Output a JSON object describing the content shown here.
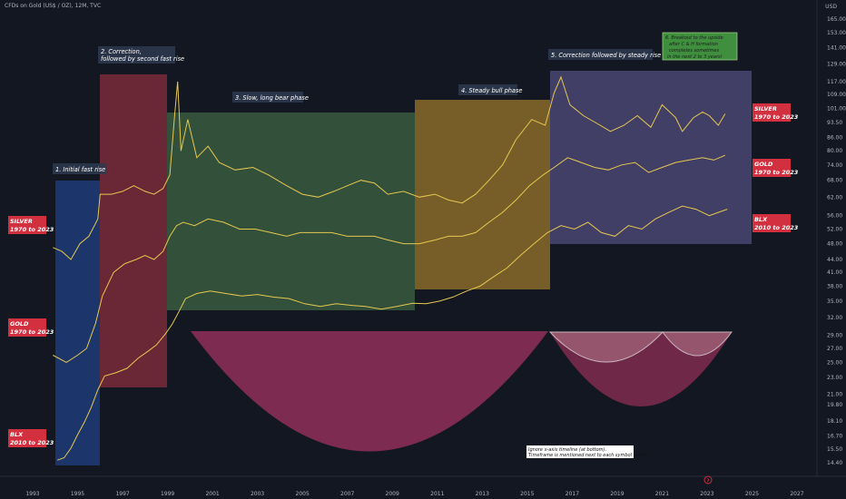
{
  "header": {
    "title": "CFDs on Gold (US$ / OZ), 12M, TVC",
    "currency": "USD"
  },
  "colors": {
    "background": "#131722",
    "series_line": "#e6c84f",
    "phase1": "#1f3b78",
    "phase2": "#7a2a3a",
    "phase3": "#3a5a40",
    "phase4": "#8a6b2a",
    "phase5": "#4a4672",
    "arc_big": "#8a2d55",
    "arc_small": "#7b3553",
    "side_label_bg": "#d22f3f",
    "note6_bg": "#3f8f3f"
  },
  "phases": [
    {
      "id": "phase-1",
      "label": "1. Initial fast rise"
    },
    {
      "id": "phase-2",
      "label_lines": [
        "2. Correction,",
        "followed by second fast rise"
      ]
    },
    {
      "id": "phase-3",
      "label": "3. Slow, long bear phase"
    },
    {
      "id": "phase-4",
      "label": "4. Steady bull phase"
    },
    {
      "id": "phase-5",
      "label": "5. Correction followed by steady rise"
    }
  ],
  "note6": {
    "lines": [
      "6. Breakout to the upside",
      "after C & H formation",
      "completes sometimes",
      "in the next 2 to 3 years!"
    ]
  },
  "note_bottom": {
    "lines": [
      "Ignore x-axis timeline (at bottom).",
      "Timeframe is mentioned next to each symbol above."
    ]
  },
  "side_labels": {
    "left": [
      {
        "name": "silver",
        "lines": [
          "SILVER",
          "1970 to 2023"
        ]
      },
      {
        "name": "gold",
        "lines": [
          "GOLD",
          "1970 to 2023"
        ]
      },
      {
        "name": "blx",
        "lines": [
          "BLX",
          "2010 to 2023"
        ]
      }
    ],
    "right": [
      {
        "name": "silver",
        "lines": [
          "SILVER",
          "1970 to 2023"
        ]
      },
      {
        "name": "gold",
        "lines": [
          "GOLD",
          "1970 to 2023"
        ]
      },
      {
        "name": "blx",
        "lines": [
          "BLX",
          "2010 to 2023"
        ]
      }
    ]
  },
  "chart_data": {
    "type": "line",
    "title": "CFDs on Gold (US$ / OZ), 12M, TVC",
    "y_scale": "log",
    "x_ticks": [
      "1993",
      "1995",
      "1997",
      "1999",
      "2001",
      "2003",
      "2005",
      "2007",
      "2009",
      "2011",
      "2013",
      "2015",
      "2017",
      "2019",
      "2021",
      "2023",
      "2025",
      "2027"
    ],
    "y_ticks": [
      "165.00",
      "153.00",
      "141.00",
      "129.00",
      "117.00",
      "109.00",
      "101.00",
      "93.50",
      "86.00",
      "80.00",
      "74.00",
      "68.00",
      "62.00",
      "56.00",
      "52.00",
      "48.00",
      "44.00",
      "41.00",
      "38.00",
      "35.00",
      "32.00",
      "29.00",
      "27.00",
      "25.00",
      "23.00",
      "21.00",
      "19.80",
      "18.10",
      "16.70",
      "15.50",
      "14.40"
    ],
    "series": [
      {
        "key": "silver",
        "points": [
          [
            1993.9,
            47
          ],
          [
            1994.3,
            46
          ],
          [
            1994.7,
            44
          ],
          [
            1995.1,
            48
          ],
          [
            1995.5,
            50
          ],
          [
            1995.9,
            55
          ],
          [
            1996.0,
            63
          ],
          [
            1996.5,
            63
          ],
          [
            1997.0,
            64
          ],
          [
            1997.5,
            66
          ],
          [
            1998.0,
            64
          ],
          [
            1998.4,
            63
          ],
          [
            1998.8,
            65
          ],
          [
            1999.1,
            70
          ],
          [
            1999.3,
            95
          ],
          [
            1999.45,
            117
          ],
          [
            1999.6,
            80
          ],
          [
            1999.9,
            95
          ],
          [
            2000.3,
            77
          ],
          [
            2000.8,
            82
          ],
          [
            2001.3,
            75
          ],
          [
            2002.0,
            72
          ],
          [
            2002.8,
            73
          ],
          [
            2003.5,
            70
          ],
          [
            2004.3,
            66
          ],
          [
            2005.0,
            63
          ],
          [
            2005.7,
            62
          ],
          [
            2006.4,
            64
          ],
          [
            2007.0,
            66
          ],
          [
            2007.6,
            68
          ],
          [
            2008.2,
            67
          ],
          [
            2008.8,
            63
          ],
          [
            2009.5,
            64
          ],
          [
            2010.2,
            62
          ],
          [
            2010.9,
            63
          ],
          [
            2011.5,
            61
          ],
          [
            2012.1,
            60
          ],
          [
            2012.7,
            63
          ],
          [
            2013.3,
            68
          ],
          [
            2013.9,
            74
          ],
          [
            2014.5,
            85
          ],
          [
            2015.2,
            95
          ],
          [
            2015.8,
            92
          ],
          [
            2016.2,
            110
          ],
          [
            2016.5,
            120
          ],
          [
            2016.9,
            103
          ],
          [
            2017.5,
            97
          ],
          [
            2018.1,
            93
          ],
          [
            2018.7,
            89
          ],
          [
            2019.3,
            92
          ],
          [
            2019.9,
            97
          ],
          [
            2020.5,
            91
          ],
          [
            2021.0,
            103
          ],
          [
            2021.6,
            96
          ],
          [
            2021.9,
            89
          ],
          [
            2022.4,
            96
          ],
          [
            2022.8,
            99
          ],
          [
            2023.1,
            97
          ],
          [
            2023.5,
            92
          ],
          [
            2023.8,
            98
          ]
        ]
      },
      {
        "key": "gold",
        "points": [
          [
            1993.9,
            26
          ],
          [
            1994.5,
            25
          ],
          [
            1995.0,
            26
          ],
          [
            1995.4,
            27
          ],
          [
            1995.8,
            31
          ],
          [
            1996.1,
            36
          ],
          [
            1996.6,
            41
          ],
          [
            1997.1,
            43
          ],
          [
            1997.6,
            44
          ],
          [
            1998.0,
            45
          ],
          [
            1998.4,
            44
          ],
          [
            1998.8,
            46
          ],
          [
            1999.1,
            50
          ],
          [
            1999.4,
            53
          ],
          [
            1999.7,
            54
          ],
          [
            2000.2,
            53
          ],
          [
            2000.8,
            55
          ],
          [
            2001.5,
            54
          ],
          [
            2002.2,
            52
          ],
          [
            2002.9,
            52
          ],
          [
            2003.6,
            51
          ],
          [
            2004.3,
            50
          ],
          [
            2004.9,
            51
          ],
          [
            2005.6,
            51
          ],
          [
            2006.3,
            51
          ],
          [
            2007.0,
            50
          ],
          [
            2007.6,
            50
          ],
          [
            2008.2,
            50
          ],
          [
            2008.8,
            49
          ],
          [
            2009.5,
            48
          ],
          [
            2010.2,
            48
          ],
          [
            2010.9,
            49
          ],
          [
            2011.5,
            50
          ],
          [
            2012.1,
            50
          ],
          [
            2012.7,
            51
          ],
          [
            2013.3,
            54
          ],
          [
            2013.9,
            57
          ],
          [
            2014.5,
            61
          ],
          [
            2015.1,
            66
          ],
          [
            2015.7,
            70
          ],
          [
            2016.2,
            73
          ],
          [
            2016.8,
            77
          ],
          [
            2017.4,
            75
          ],
          [
            2018.0,
            73
          ],
          [
            2018.6,
            72
          ],
          [
            2019.2,
            74
          ],
          [
            2019.8,
            75
          ],
          [
            2020.4,
            71
          ],
          [
            2021.0,
            73
          ],
          [
            2021.6,
            75
          ],
          [
            2022.2,
            76
          ],
          [
            2022.8,
            77
          ],
          [
            2023.3,
            76
          ],
          [
            2023.8,
            78
          ]
        ]
      },
      {
        "key": "blx",
        "points": [
          [
            1994.1,
            14.6
          ],
          [
            1994.4,
            14.8
          ],
          [
            1994.7,
            15.6
          ],
          [
            1995.0,
            16.8
          ],
          [
            1995.3,
            18.0
          ],
          [
            1995.6,
            19.5
          ],
          [
            1995.9,
            21.5
          ],
          [
            1996.2,
            23.2
          ],
          [
            1996.7,
            23.6
          ],
          [
            1997.2,
            24.2
          ],
          [
            1997.7,
            25.6
          ],
          [
            1998.1,
            26.5
          ],
          [
            1998.5,
            27.5
          ],
          [
            1998.9,
            29.2
          ],
          [
            1999.2,
            30.8
          ],
          [
            1999.5,
            33.0
          ],
          [
            1999.8,
            35.5
          ],
          [
            2000.3,
            36.5
          ],
          [
            2000.9,
            37.0
          ],
          [
            2001.6,
            36.5
          ],
          [
            2002.3,
            36.0
          ],
          [
            2003.0,
            36.3
          ],
          [
            2003.7,
            35.8
          ],
          [
            2004.4,
            35.5
          ],
          [
            2005.1,
            34.5
          ],
          [
            2005.8,
            34.0
          ],
          [
            2006.5,
            34.5
          ],
          [
            2007.2,
            34.2
          ],
          [
            2007.8,
            34.0
          ],
          [
            2008.5,
            33.5
          ],
          [
            2009.2,
            34.0
          ],
          [
            2009.9,
            34.6
          ],
          [
            2010.5,
            34.5
          ],
          [
            2011.1,
            35.0
          ],
          [
            2011.7,
            35.8
          ],
          [
            2012.3,
            37.0
          ],
          [
            2012.9,
            38.0
          ],
          [
            2013.5,
            40.0
          ],
          [
            2014.1,
            42.0
          ],
          [
            2014.7,
            45.0
          ],
          [
            2015.3,
            48.0
          ],
          [
            2015.9,
            51.0
          ],
          [
            2016.5,
            53.0
          ],
          [
            2017.1,
            52.0
          ],
          [
            2017.7,
            54.0
          ],
          [
            2018.3,
            51.0
          ],
          [
            2018.9,
            50.0
          ],
          [
            2019.5,
            53.0
          ],
          [
            2020.1,
            52.0
          ],
          [
            2020.7,
            55.0
          ],
          [
            2021.3,
            57.0
          ],
          [
            2021.9,
            59.0
          ],
          [
            2022.5,
            58.0
          ],
          [
            2023.1,
            56.0
          ],
          [
            2023.5,
            57.0
          ],
          [
            2023.9,
            58.0
          ]
        ]
      }
    ]
  }
}
